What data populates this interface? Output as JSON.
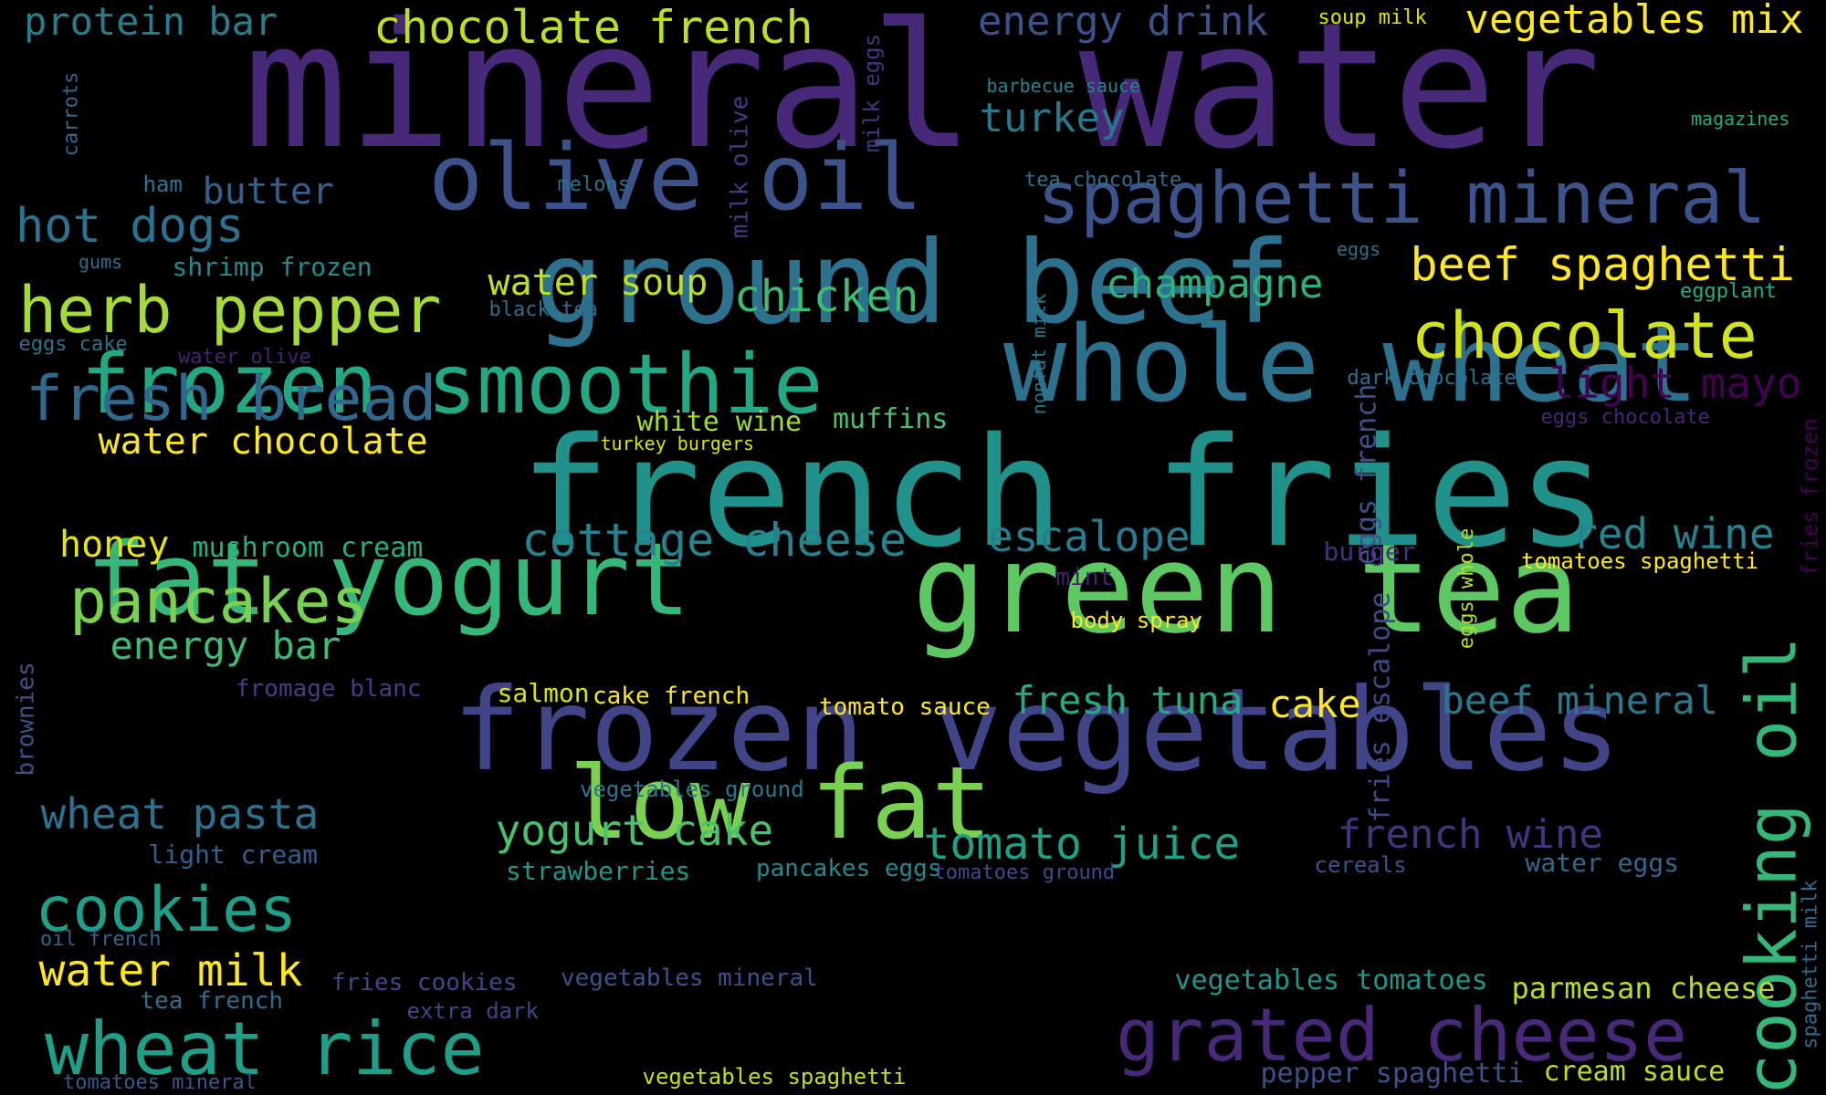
{
  "background": "#000000",
  "words": [
    {
      "text": "mineral water",
      "color": "#482878"
    },
    {
      "text": "french fries",
      "color": "#21918c"
    },
    {
      "text": "frozen vegetables",
      "color": "#414487"
    },
    {
      "text": "green tea",
      "color": "#5ec962"
    },
    {
      "text": "ground beef",
      "color": "#2c728e"
    },
    {
      "text": "whole wheat",
      "color": "#2c728e"
    },
    {
      "text": "olive oil",
      "color": "#3b528b"
    },
    {
      "text": "fat yogurt",
      "color": "#35b779"
    },
    {
      "text": "frozen smoothie",
      "color": "#22a884"
    },
    {
      "text": "low fat",
      "color": "#7ad151"
    },
    {
      "text": "spaghetti mineral",
      "color": "#3b528b"
    },
    {
      "text": "grated cheese",
      "color": "#482878"
    },
    {
      "text": "wheat rice",
      "color": "#1f9e89"
    },
    {
      "text": "cooking oil",
      "color": "#35b779"
    },
    {
      "text": "chocolate",
      "color": "#d2e21b"
    },
    {
      "text": "herb pepper",
      "color": "#a5db36"
    },
    {
      "text": "cookies",
      "color": "#1f9e89"
    },
    {
      "text": "fresh bread",
      "color": "#31688e"
    },
    {
      "text": "pancakes",
      "color": "#7ad151"
    },
    {
      "text": "beef spaghetti",
      "color": "#fde725"
    },
    {
      "text": "chocolate french",
      "color": "#bddf26"
    },
    {
      "text": "hot dogs",
      "color": "#2c728e"
    },
    {
      "text": "cottage cheese",
      "color": "#26828e"
    },
    {
      "text": "escalope",
      "color": "#287c8e"
    },
    {
      "text": "red wine",
      "color": "#26828e"
    },
    {
      "text": "tomato juice",
      "color": "#1fa187"
    },
    {
      "text": "french wine",
      "color": "#46337e"
    },
    {
      "text": "champagne",
      "color": "#2db27d"
    },
    {
      "text": "chicken",
      "color": "#3fbc73"
    },
    {
      "text": "vegetables mix",
      "color": "#fde725"
    },
    {
      "text": "energy drink",
      "color": "#3b528b"
    },
    {
      "text": "protein bar",
      "color": "#287d8e"
    },
    {
      "text": "turkey",
      "color": "#2a788e"
    },
    {
      "text": "light mayo",
      "color": "#440154"
    },
    {
      "text": "wheat pasta",
      "color": "#2c728e"
    },
    {
      "text": "water milk",
      "color": "#fde725"
    },
    {
      "text": "yogurt cake",
      "color": "#4ac16d"
    },
    {
      "text": "beef mineral",
      "color": "#2a788e"
    },
    {
      "text": "fresh tuna",
      "color": "#25ab82"
    },
    {
      "text": "energy bar",
      "color": "#3dbc74"
    },
    {
      "text": "water chocolate",
      "color": "#fde725"
    },
    {
      "text": "water soup",
      "color": "#bddf26"
    },
    {
      "text": "cake",
      "color": "#fde725"
    },
    {
      "text": "honey",
      "color": "#e5e419"
    },
    {
      "text": "butter",
      "color": "#355f8d"
    },
    {
      "text": "parmesan cheese",
      "color": "#b5de2b"
    },
    {
      "text": "mushroom cream",
      "color": "#27ad81"
    },
    {
      "text": "muffins",
      "color": "#4ac16d"
    },
    {
      "text": "white wine",
      "color": "#a0da39"
    },
    {
      "text": "shrimp frozen",
      "color": "#238a8d"
    },
    {
      "text": "cream sauce",
      "color": "#bddf26"
    },
    {
      "text": "pepper spaghetti",
      "color": "#3b528b"
    },
    {
      "text": "vegetables tomatoes",
      "color": "#1f968b"
    },
    {
      "text": "water eggs",
      "color": "#31688e"
    },
    {
      "text": "strawberries",
      "color": "#1f978b"
    },
    {
      "text": "eggs french",
      "color": "#3b528b"
    },
    {
      "text": "fries escalope",
      "color": "#3e4a89"
    },
    {
      "text": "salmon",
      "color": "#d8e219"
    },
    {
      "text": "light cream",
      "color": "#34608d"
    },
    {
      "text": "burger",
      "color": "#46327e"
    },
    {
      "text": "tomato sauce",
      "color": "#fde725"
    },
    {
      "text": "cake french",
      "color": "#fde725"
    },
    {
      "text": "pancakes eggs",
      "color": "#23898e"
    },
    {
      "text": "tea french",
      "color": "#2d708e"
    },
    {
      "text": "vegetables mineral",
      "color": "#3b528b"
    },
    {
      "text": "fries cookies",
      "color": "#3e4989"
    },
    {
      "text": "extra dark",
      "color": "#3f4788"
    },
    {
      "text": "tomatoes spaghetti",
      "color": "#fde725"
    },
    {
      "text": "cereals",
      "color": "#3b528b"
    },
    {
      "text": "fromage blanc",
      "color": "#433e85"
    },
    {
      "text": "vegetables ground",
      "color": "#2a768e"
    },
    {
      "text": "tomatoes ground",
      "color": "#3e4a89"
    },
    {
      "text": "tomatoes mineral",
      "color": "#38598c"
    },
    {
      "text": "vegetables spaghetti",
      "color": "#c2df23"
    },
    {
      "text": "oil french",
      "color": "#33628d"
    },
    {
      "text": "brownies",
      "color": "#3b528b"
    },
    {
      "text": "eggs whole",
      "color": "#b5de2b"
    },
    {
      "text": "spaghetti milk",
      "color": "#306a8e"
    },
    {
      "text": "fries frozen",
      "color": "#440154"
    },
    {
      "text": "body spray",
      "color": "#fde725"
    },
    {
      "text": "mint",
      "color": "#481f70"
    },
    {
      "text": "eggs chocolate",
      "color": "#482576"
    },
    {
      "text": "dark chocolate",
      "color": "#2c728e"
    },
    {
      "text": "nonfat milk",
      "color": "#2a788e"
    },
    {
      "text": "turkey burgers",
      "color": "#d8e219"
    },
    {
      "text": "black tea",
      "color": "#2f6c8e"
    },
    {
      "text": "water olive",
      "color": "#482173"
    },
    {
      "text": "eggs cake",
      "color": "#2c728e"
    },
    {
      "text": "eggplant",
      "color": "#27ad81"
    },
    {
      "text": "eggs",
      "color": "#2c728e"
    },
    {
      "text": "gums",
      "color": "#2e6d8e"
    },
    {
      "text": "ham",
      "color": "#2a788e"
    },
    {
      "text": "melons",
      "color": "#2c738e"
    },
    {
      "text": "tea chocolate",
      "color": "#2e6f8e"
    },
    {
      "text": "milk olive",
      "color": "#443a83"
    },
    {
      "text": "milk eggs",
      "color": "#453581"
    },
    {
      "text": "barbecue sauce",
      "color": "#26828e"
    },
    {
      "text": "soup milk",
      "color": "#dde318"
    },
    {
      "text": "magazines",
      "color": "#25ab82"
    },
    {
      "text": "carrots",
      "color": "#31688e"
    }
  ]
}
